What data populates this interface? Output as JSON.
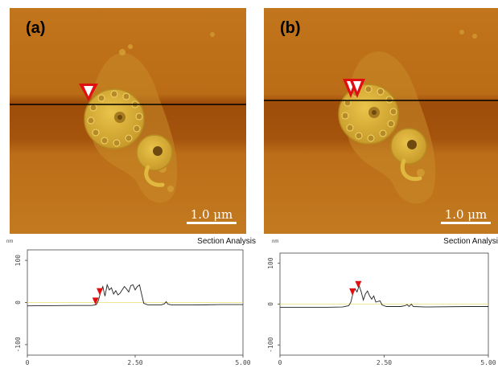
{
  "panels": [
    {
      "label": "(a)",
      "scale_bar": "1.0 μm"
    },
    {
      "label": "(b)",
      "scale_bar": "1.0 μm"
    }
  ],
  "sections": [
    {
      "title": "Section Analysis",
      "unit": "nm",
      "y_ticks": [
        "100",
        "0",
        "-100"
      ],
      "x_ticks": [
        "0",
        "2.50",
        "5.00"
      ],
      "marker_positions_um": [
        1.58,
        1.68
      ],
      "profile_um_nm": [
        [
          0,
          -8
        ],
        [
          1.0,
          -7
        ],
        [
          1.5,
          -7
        ],
        [
          1.6,
          -5
        ],
        [
          1.65,
          5
        ],
        [
          1.7,
          25
        ],
        [
          1.75,
          38
        ],
        [
          1.8,
          15
        ],
        [
          1.85,
          42
        ],
        [
          1.9,
          30
        ],
        [
          1.95,
          35
        ],
        [
          2.0,
          20
        ],
        [
          2.05,
          28
        ],
        [
          2.1,
          18
        ],
        [
          2.15,
          22
        ],
        [
          2.2,
          30
        ],
        [
          2.25,
          38
        ],
        [
          2.3,
          32
        ],
        [
          2.35,
          25
        ],
        [
          2.4,
          40
        ],
        [
          2.45,
          42
        ],
        [
          2.5,
          30
        ],
        [
          2.55,
          38
        ],
        [
          2.6,
          42
        ],
        [
          2.65,
          20
        ],
        [
          2.7,
          -2
        ],
        [
          2.8,
          -6
        ],
        [
          3.1,
          -6
        ],
        [
          3.18,
          -3
        ],
        [
          3.22,
          2
        ],
        [
          3.26,
          -4
        ],
        [
          3.35,
          -6
        ],
        [
          3.8,
          -6
        ],
        [
          4.5,
          -5
        ],
        [
          5.0,
          -5
        ]
      ]
    },
    {
      "title": "Section Analysi",
      "unit": "nm",
      "y_ticks": [
        "100",
        "0",
        "-100"
      ],
      "x_ticks": [
        "0",
        "2.50",
        "5.00"
      ],
      "marker_positions_um": [
        1.74,
        1.88
      ],
      "profile_um_nm": [
        [
          0,
          -8
        ],
        [
          1.0,
          -8
        ],
        [
          1.5,
          -7
        ],
        [
          1.65,
          -4
        ],
        [
          1.7,
          5
        ],
        [
          1.75,
          25
        ],
        [
          1.8,
          38
        ],
        [
          1.85,
          30
        ],
        [
          1.9,
          45
        ],
        [
          1.95,
          30
        ],
        [
          2.0,
          10
        ],
        [
          2.05,
          25
        ],
        [
          2.1,
          32
        ],
        [
          2.15,
          20
        ],
        [
          2.2,
          12
        ],
        [
          2.25,
          20
        ],
        [
          2.3,
          5
        ],
        [
          2.4,
          8
        ],
        [
          2.45,
          -2
        ],
        [
          2.55,
          -6
        ],
        [
          2.9,
          -6
        ],
        [
          3.0,
          -4
        ],
        [
          3.05,
          -1
        ],
        [
          3.1,
          -6
        ],
        [
          3.15,
          0
        ],
        [
          3.2,
          -6
        ],
        [
          3.5,
          -7
        ],
        [
          4.5,
          -6
        ],
        [
          5.0,
          -6
        ]
      ]
    }
  ]
}
